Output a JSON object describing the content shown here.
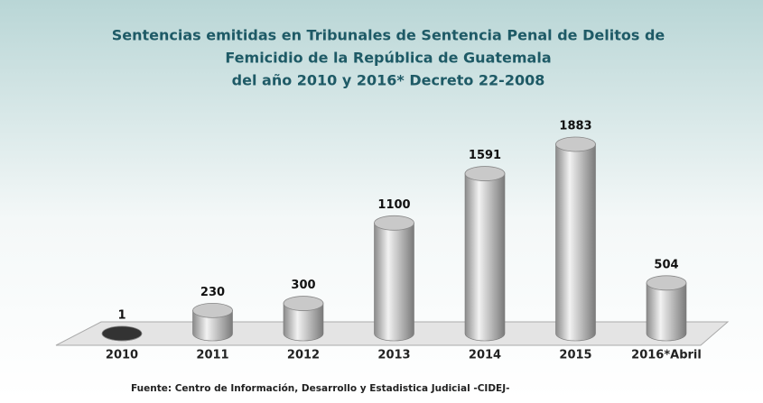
{
  "chart_data": {
    "type": "bar",
    "title": [
      "Sentencias emitidas en Tribunales de Sentencia Penal de Delitos de",
      "Femicidio de la República de Guatemala",
      "del año 2010 y 2016* Decreto 22-2008"
    ],
    "categories": [
      "2010",
      "2011",
      "2012",
      "2013",
      "2014",
      "2015",
      "2016*Abril"
    ],
    "values": [
      1,
      230,
      300,
      1100,
      1591,
      1883,
      504
    ],
    "color": "#c9c9c9",
    "source": "Fuente: Centro de Información, Desarrollo y Estadistica Judicial -CIDEJ-"
  }
}
